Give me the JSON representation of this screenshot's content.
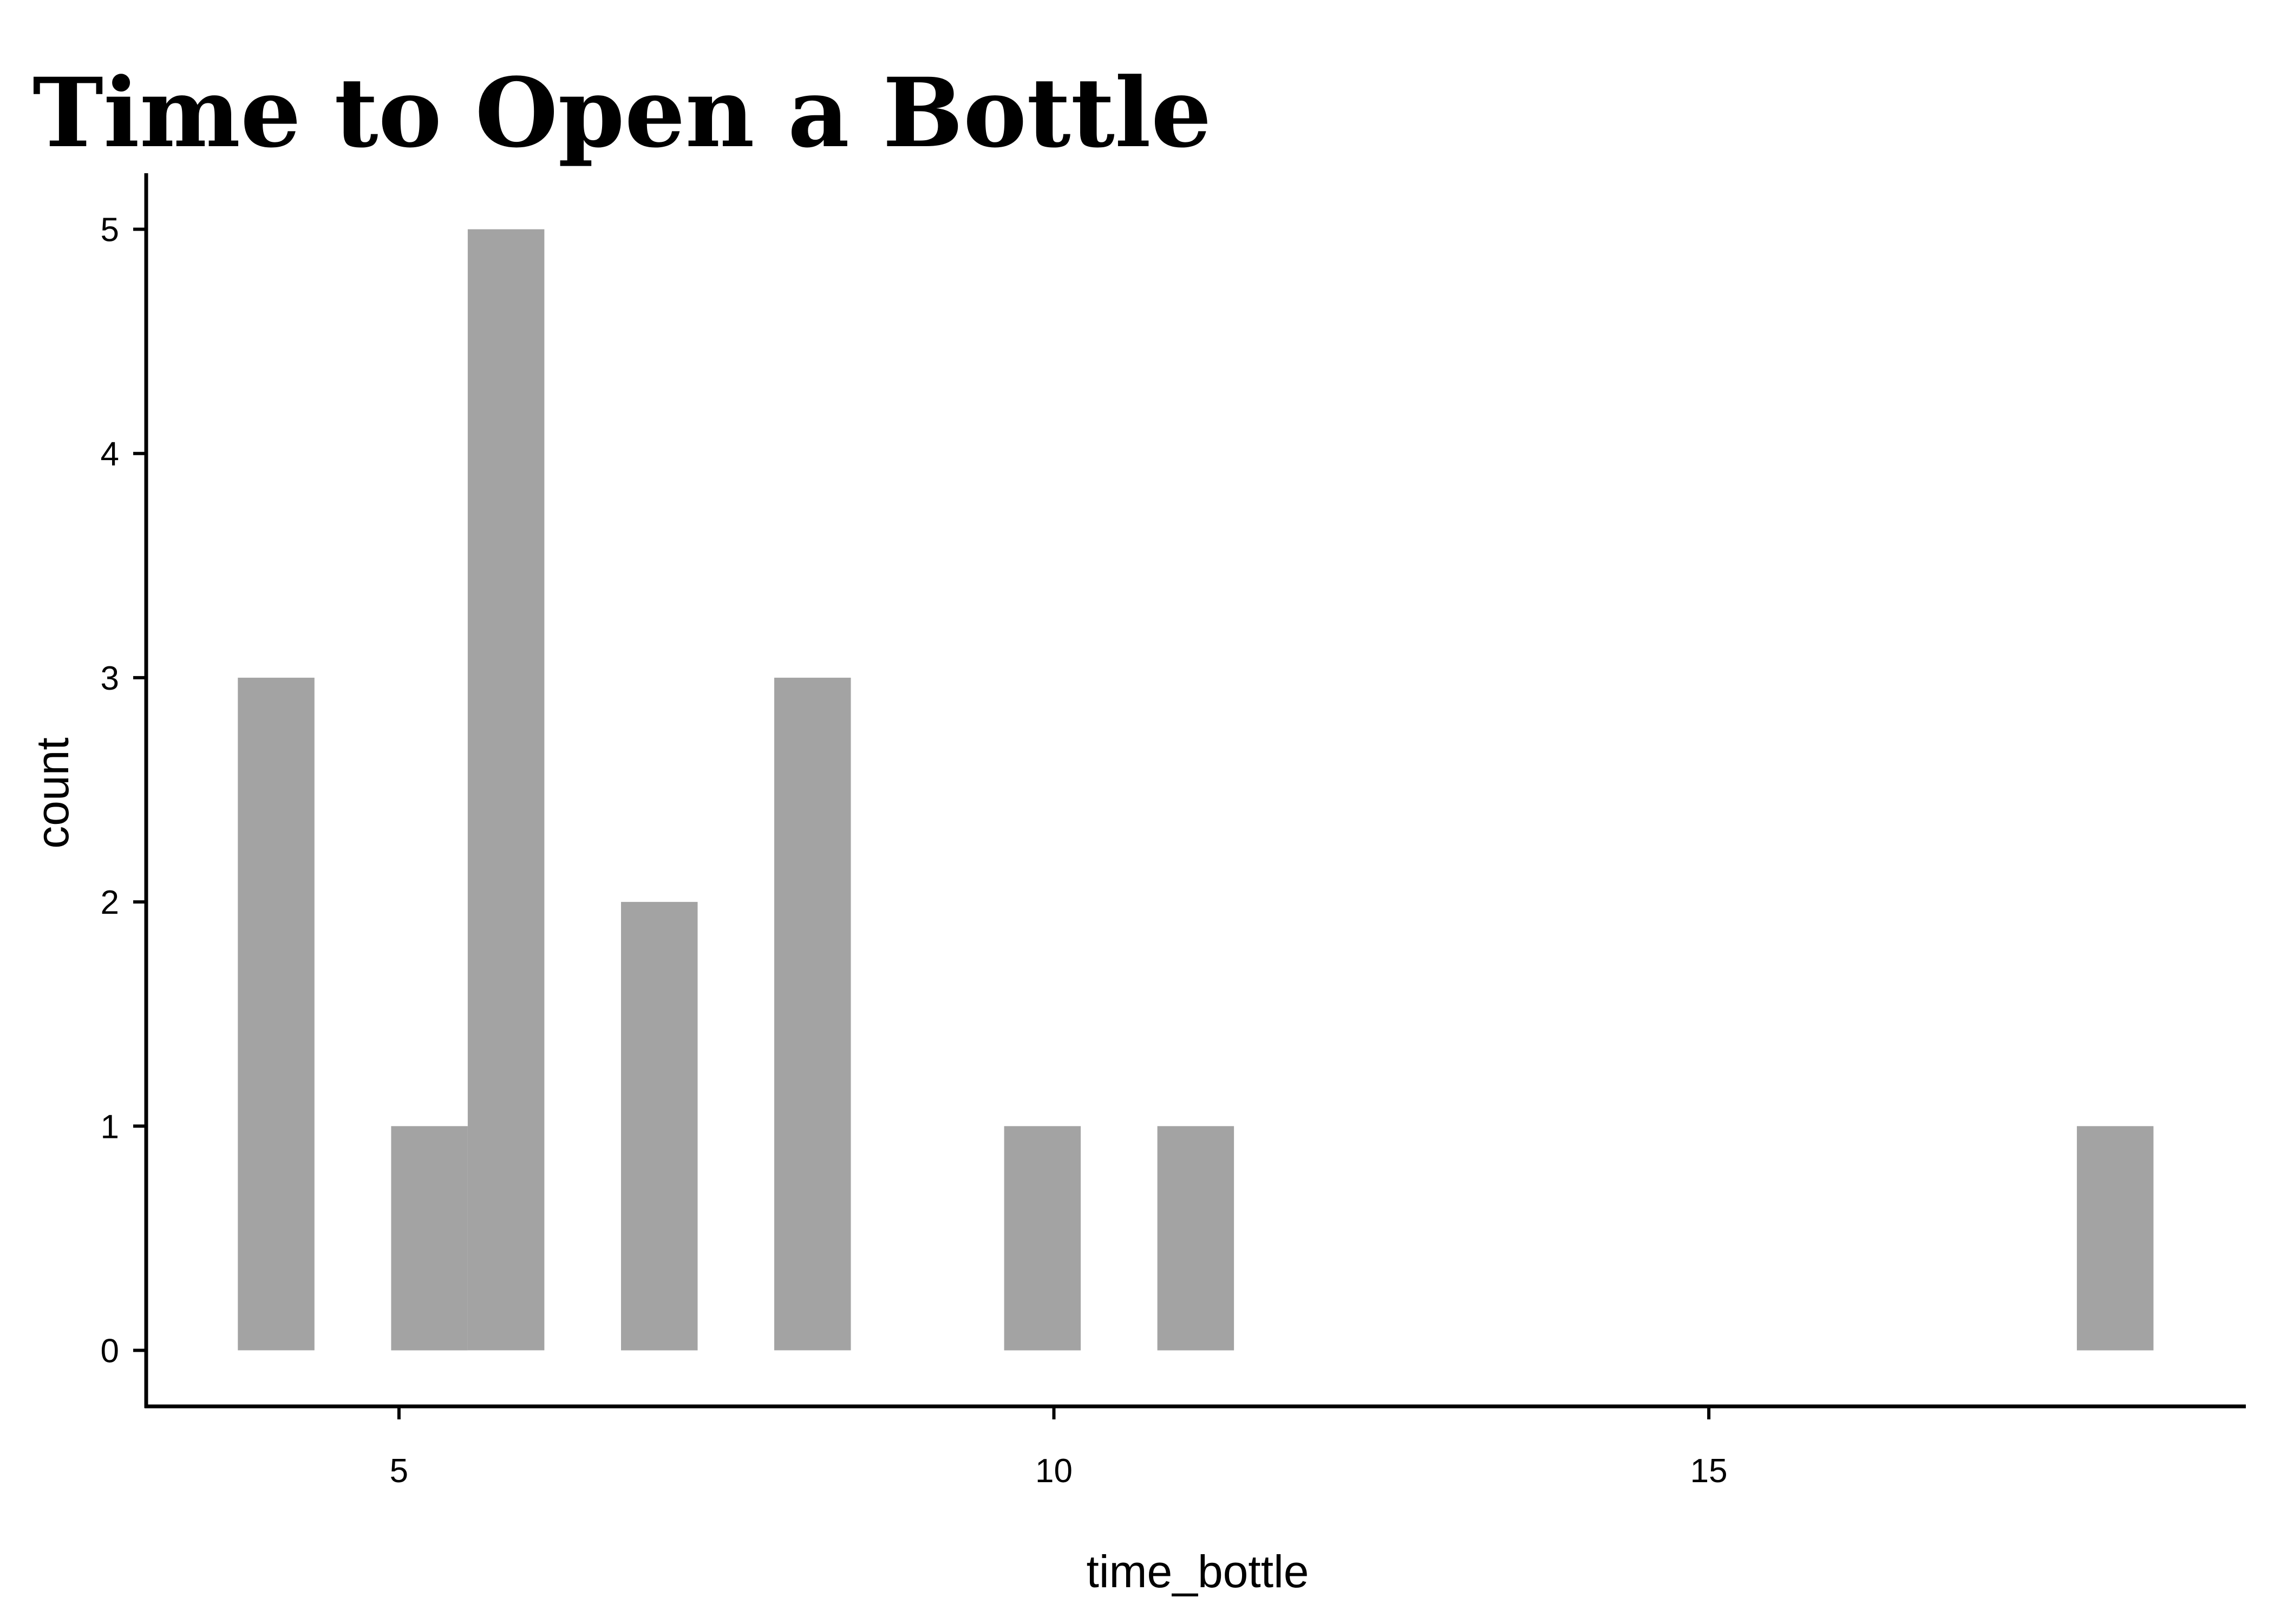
{
  "chart_data": {
    "type": "bar",
    "title": "Time to Open a Bottle",
    "xlabel": "time_bottle",
    "ylabel": "count",
    "xlim": [
      3.07,
      19.1
    ],
    "ylim": [
      -0.25,
      5.25
    ],
    "x_ticks": [
      5,
      10,
      15
    ],
    "y_ticks": [
      0,
      1,
      2,
      3,
      4,
      5
    ],
    "bin_width": 0.585,
    "bins": [
      {
        "x_start": 3.77,
        "x_end": 4.355,
        "count": 3
      },
      {
        "x_start": 4.94,
        "x_end": 5.525,
        "count": 1
      },
      {
        "x_start": 5.525,
        "x_end": 6.11,
        "count": 5
      },
      {
        "x_start": 6.695,
        "x_end": 7.28,
        "count": 2
      },
      {
        "x_start": 7.865,
        "x_end": 8.45,
        "count": 3
      },
      {
        "x_start": 9.62,
        "x_end": 10.205,
        "count": 1
      },
      {
        "x_start": 10.79,
        "x_end": 11.375,
        "count": 1
      },
      {
        "x_start": 17.81,
        "x_end": 18.395,
        "count": 1
      }
    ],
    "grid": false,
    "legend": "none",
    "bar_color": "#a3a3a3",
    "axis_color": "#000000"
  }
}
